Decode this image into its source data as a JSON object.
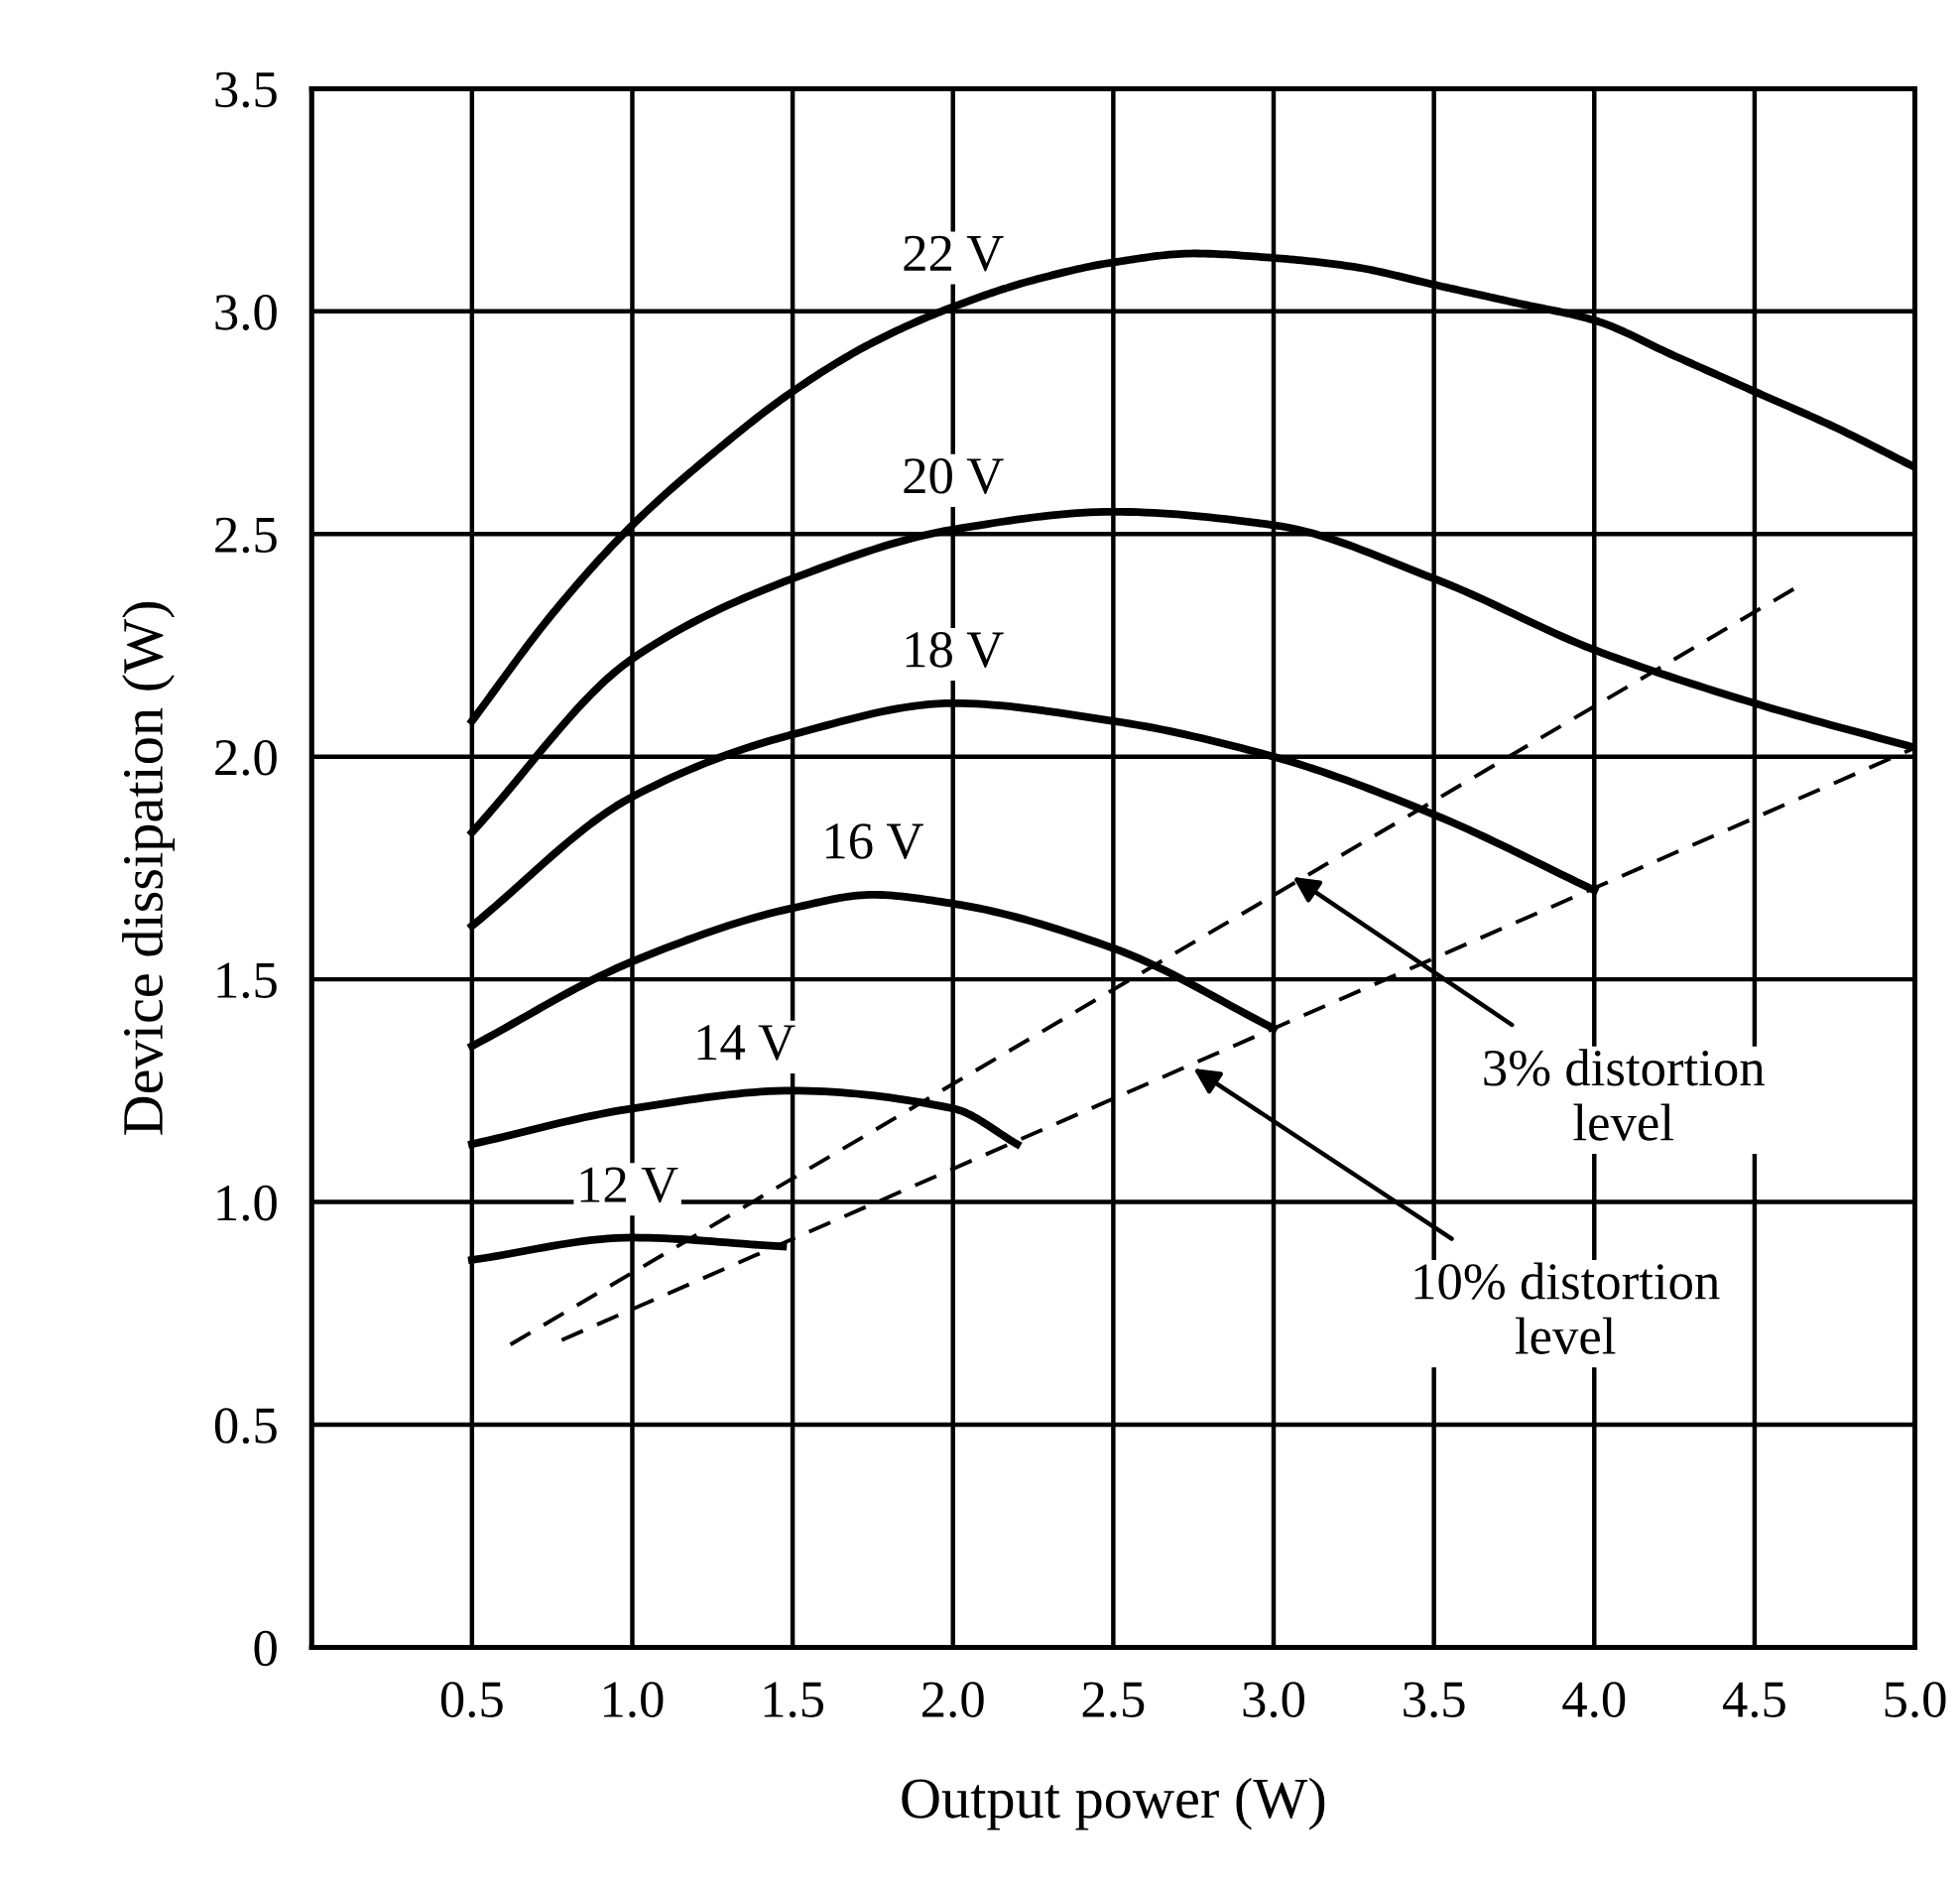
{
  "chart_data": {
    "type": "line",
    "xlabel": "Output power (W)",
    "ylabel": "Device dissipation (W)",
    "xlim": [
      0,
      5
    ],
    "ylim": [
      0,
      3.5
    ],
    "xticks": [
      {
        "value": 0,
        "label": null
      },
      0.5,
      {
        "value": 1,
        "label": "1.0"
      },
      1.5,
      {
        "value": 2,
        "label": "2.0"
      },
      2.5,
      {
        "value": 3,
        "label": "3.0"
      },
      3.5,
      {
        "value": 4,
        "label": "4.0"
      },
      4.5,
      {
        "value": 5,
        "label": "5.0"
      }
    ],
    "yticks": [
      0,
      0.5,
      {
        "value": 1,
        "label": "1.0"
      },
      1.5,
      {
        "value": 2,
        "label": "2.0"
      },
      2.5,
      {
        "value": 3,
        "label": "3.0"
      },
      3.5
    ],
    "grid": true,
    "legend": false,
    "marker": "none",
    "series": [
      {
        "name": "22 V",
        "color": "#000000",
        "line_style": "solid",
        "x": [
          0.5,
          0.75,
          1.0,
          1.25,
          1.5,
          1.75,
          2.0,
          2.25,
          2.5,
          2.75,
          3.0,
          3.25,
          3.5,
          3.75,
          4.0,
          4.25,
          4.5,
          4.75,
          5.0
        ],
        "values": [
          2.08,
          2.32,
          2.52,
          2.68,
          2.82,
          2.93,
          3.01,
          3.07,
          3.11,
          3.13,
          3.12,
          3.1,
          3.06,
          3.02,
          2.98,
          2.9,
          2.82,
          2.74,
          2.65
        ]
      },
      {
        "name": "20 V",
        "color": "#000000",
        "line_style": "solid",
        "x": [
          0.5,
          1.0,
          1.5,
          2.0,
          2.5,
          3.0,
          3.5,
          4.0,
          4.5,
          5.0
        ],
        "values": [
          1.83,
          2.22,
          2.4,
          2.51,
          2.55,
          2.52,
          2.4,
          2.24,
          2.12,
          2.02
        ]
      },
      {
        "name": "18 V",
        "color": "#000000",
        "line_style": "solid",
        "x": [
          0.5,
          1.0,
          1.5,
          2.0,
          2.5,
          3.0,
          3.5,
          4.0
        ],
        "values": [
          1.62,
          1.91,
          2.05,
          2.12,
          2.08,
          2.0,
          1.87,
          1.7
        ]
      },
      {
        "name": "16 V",
        "color": "#000000",
        "line_style": "solid",
        "x": [
          0.5,
          1.0,
          1.5,
          1.75,
          2.0,
          2.5,
          3.0
        ],
        "values": [
          1.35,
          1.54,
          1.66,
          1.69,
          1.67,
          1.57,
          1.39
        ]
      },
      {
        "name": "14 V",
        "color": "#000000",
        "line_style": "solid",
        "x": [
          0.5,
          1.0,
          1.5,
          2.0,
          2.2
        ],
        "values": [
          1.13,
          1.21,
          1.25,
          1.21,
          1.13
        ]
      },
      {
        "name": "12 V",
        "color": "#000000",
        "line_style": "solid",
        "x": [
          0.5,
          1.0,
          1.47
        ],
        "values": [
          0.87,
          0.92,
          0.9
        ]
      },
      {
        "color": "#000000",
        "line_style": "dashed",
        "x": [
          0.62,
          4.63
        ],
        "values": [
          0.68,
          2.38
        ]
      },
      {
        "color": "#000000",
        "line_style": "dashed",
        "x": [
          0.78,
          5.0
        ],
        "values": [
          0.69,
          2.02
        ]
      }
    ],
    "annotations": [
      {
        "text": "3% distortion\nlevel",
        "x": 3.06,
        "y": 1.73
      },
      {
        "text": "10% distortion\nlevel",
        "x": 2.75,
        "y": 1.3
      }
    ]
  }
}
